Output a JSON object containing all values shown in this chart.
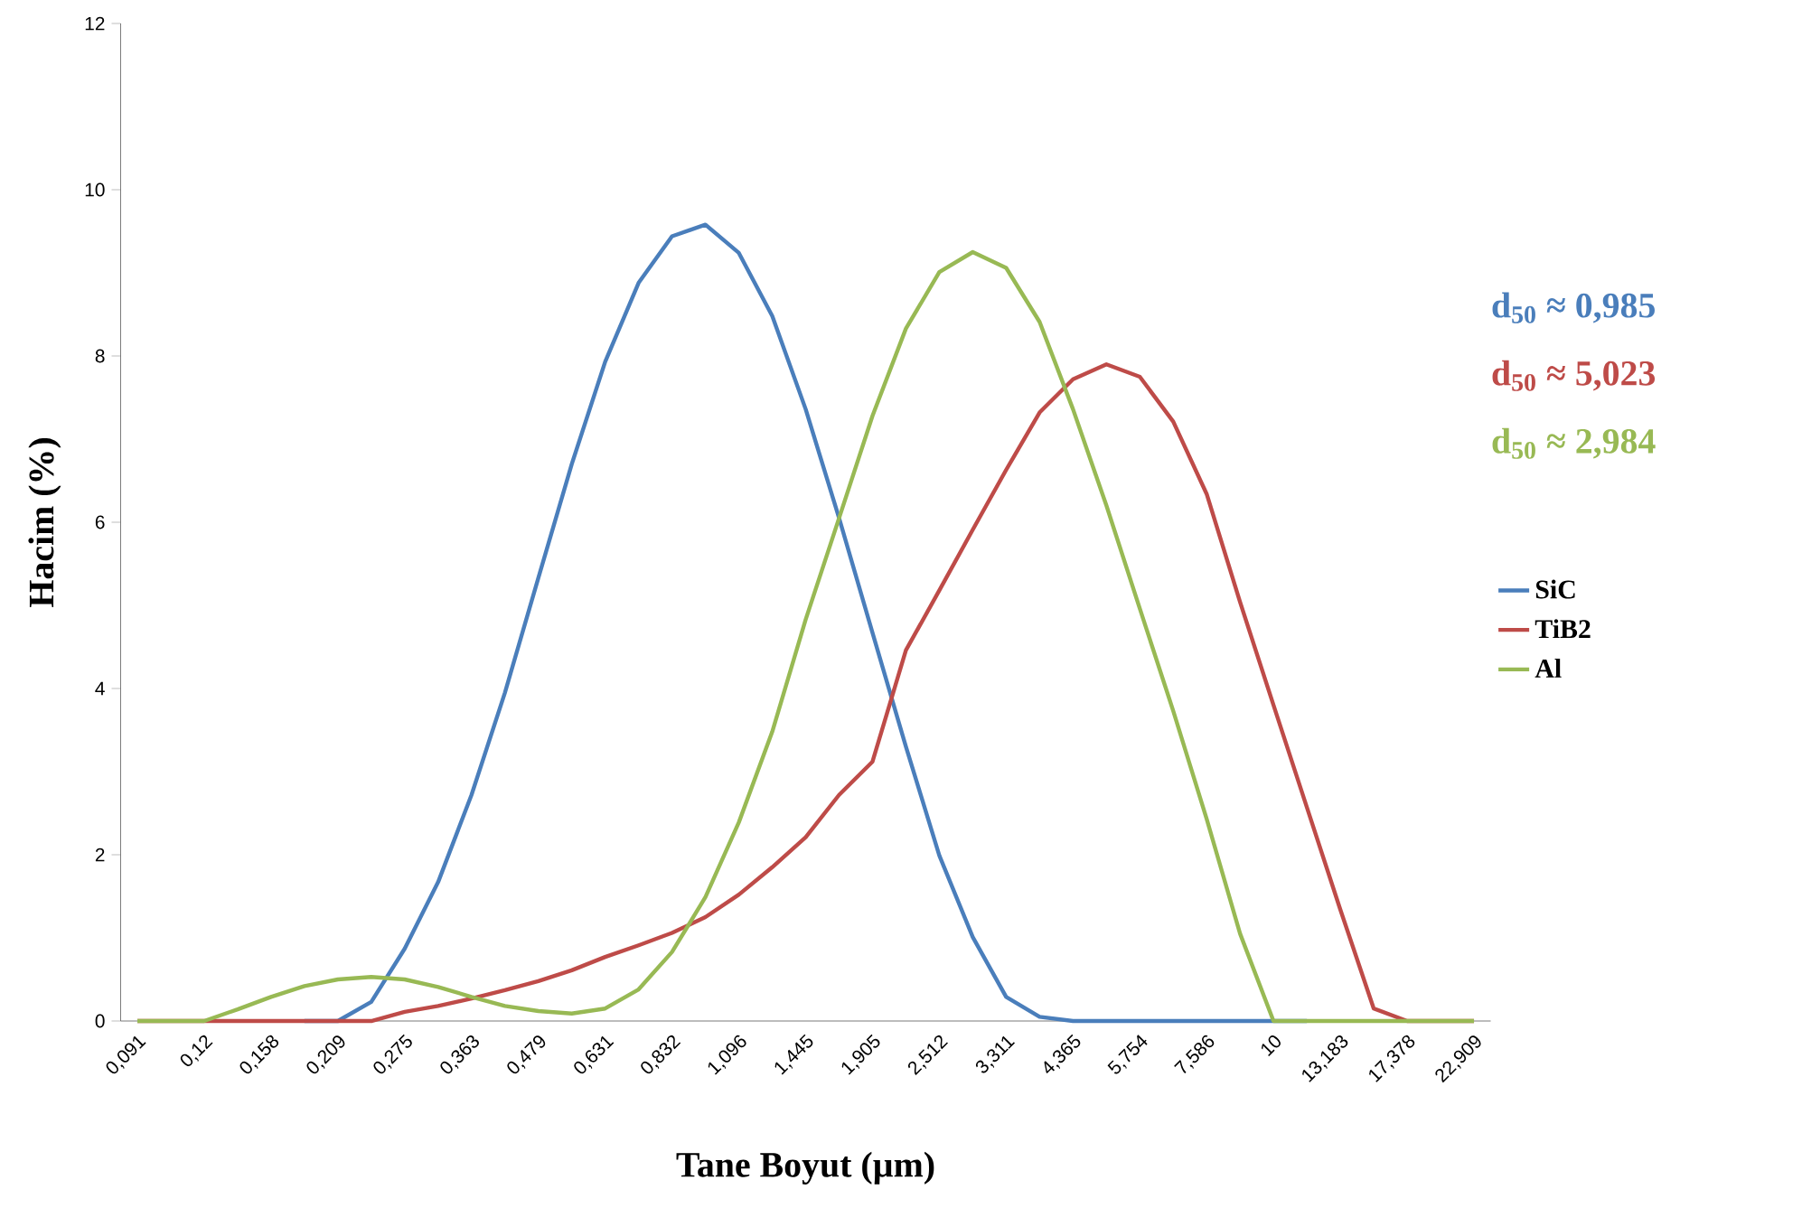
{
  "chart_data": {
    "type": "line",
    "xlabel": "Tane Boyut (µm)",
    "ylabel": "Hacim (%)",
    "categories": [
      "0,091",
      null,
      "0,12",
      null,
      "0,158",
      null,
      "0,209",
      null,
      "0,275",
      null,
      "0,363",
      null,
      "0,479",
      null,
      "0,631",
      null,
      "0,832",
      null,
      "1,096",
      null,
      "1,445",
      null,
      "1,905",
      null,
      "2,512",
      null,
      "3,311",
      null,
      "4,365",
      null,
      "5,754",
      null,
      "7,586",
      null,
      "10",
      null,
      "13,183",
      null,
      "17,378",
      null,
      "22,909"
    ],
    "series": [
      {
        "name": "SiC",
        "color": "#4a7ebb",
        "values": [
          null,
          null,
          null,
          null,
          null,
          0,
          0,
          0.23,
          0.87,
          1.67,
          2.72,
          3.95,
          5.33,
          6.7,
          7.93,
          8.88,
          9.44,
          9.58,
          9.24,
          8.48,
          7.36,
          6.05,
          4.67,
          3.3,
          1.99,
          1.01,
          0.29,
          0.05,
          0,
          0,
          0,
          0,
          0,
          0,
          0,
          0,
          null,
          null,
          null,
          null,
          null
        ]
      },
      {
        "name": "TiB2",
        "color": "#be4b48",
        "values": [
          0,
          0,
          0,
          0,
          0,
          0,
          0,
          0,
          0.11,
          0.18,
          0.27,
          0.37,
          0.48,
          0.61,
          0.77,
          0.91,
          1.06,
          1.25,
          1.52,
          1.85,
          2.21,
          2.72,
          3.12,
          4.46,
          5.18,
          5.91,
          6.63,
          7.32,
          7.72,
          7.9,
          7.75,
          7.21,
          6.34,
          5.04,
          3.8,
          2.57,
          1.34,
          0.15,
          0,
          0,
          0
        ]
      },
      {
        "name": "Al",
        "color": "#98b954",
        "values": [
          0,
          0,
          0,
          0.14,
          0.29,
          0.42,
          0.5,
          0.53,
          0.5,
          0.41,
          0.29,
          0.18,
          0.12,
          0.09,
          0.15,
          0.38,
          0.83,
          1.49,
          2.39,
          3.48,
          4.83,
          6.05,
          7.28,
          8.33,
          9.01,
          9.25,
          9.06,
          8.41,
          7.36,
          6.2,
          4.96,
          3.73,
          2.43,
          1.05,
          0,
          0,
          0,
          0,
          0,
          0,
          0
        ]
      }
    ],
    "annotations": [
      "d$_{50}$ ≈ 0,985",
      "d$_{50}$ ≈ 5,023",
      "d$_{50}$ ≈ 2,984"
    ],
    "ylim": [
      0,
      12
    ],
    "yticks": [
      0,
      2,
      4,
      6,
      8,
      10,
      12
    ],
    "legend": "right",
    "grid": false,
    "line_style": "solid"
  }
}
